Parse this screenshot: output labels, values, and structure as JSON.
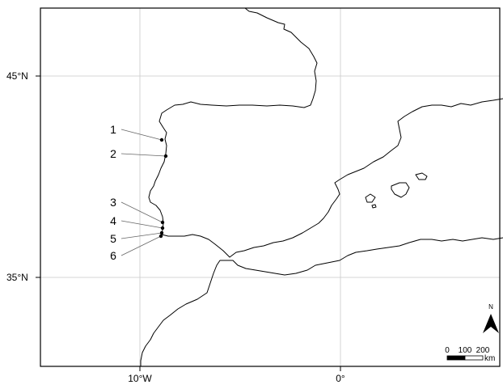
{
  "map": {
    "axes": {
      "lat_labels": [
        "45°N",
        "35°N"
      ],
      "lon_labels": [
        "10°W",
        "0°"
      ]
    },
    "sites": [
      {
        "label": "1",
        "lat": 42.9,
        "lon": -9.1
      },
      {
        "label": "2",
        "lat": 41.2,
        "lon": -8.7
      },
      {
        "label": "3",
        "lat": 37.9,
        "lon": -8.8
      },
      {
        "label": "4",
        "lat": 37.3,
        "lon": -8.8
      },
      {
        "label": "5",
        "lat": 37.05,
        "lon": -8.8
      },
      {
        "label": "6",
        "lat": 37.0,
        "lon": -8.95
      }
    ],
    "north_arrow": {
      "label": "N"
    },
    "scale_bar": {
      "ticks": [
        "0",
        "100",
        "200"
      ],
      "unit": "km"
    },
    "colors": {
      "land": "#ffffff",
      "sea": "#ffffff",
      "coast": "#000000",
      "grid": "#c8c8c8",
      "frame": "#000000"
    }
  }
}
